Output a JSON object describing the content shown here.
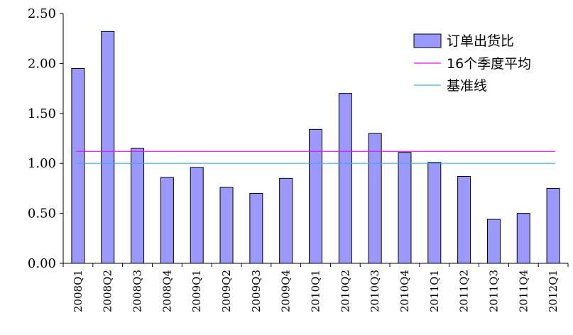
{
  "chart_data": {
    "type": "bar",
    "categories": [
      "2008Q1",
      "2008Q2",
      "2008Q3",
      "2008Q4",
      "2009Q1",
      "2009Q2",
      "2009Q3",
      "2009Q4",
      "2010Q1",
      "2010Q2",
      "2010Q3",
      "2010Q4",
      "2011Q1",
      "2011Q2",
      "2011Q3",
      "2011Q4",
      "2012Q1"
    ],
    "series": [
      {
        "name": "订单出货比",
        "type": "bar",
        "color": "#9999ff",
        "values": [
          1.95,
          2.32,
          1.15,
          0.86,
          0.96,
          0.76,
          0.7,
          0.85,
          1.34,
          1.7,
          1.3,
          1.11,
          1.01,
          0.87,
          0.44,
          0.5,
          0.75
        ]
      },
      {
        "name": "16个季度平均",
        "type": "line",
        "color": "#ff00ff",
        "value": 1.12
      },
      {
        "name": "基准线",
        "type": "line",
        "color": "#33aaff",
        "value": 1.0
      }
    ],
    "ylim": [
      0,
      2.5
    ],
    "yticks": [
      "0.00",
      "0.50",
      "1.00",
      "1.50",
      "2.00",
      "2.50"
    ],
    "ytick_values": [
      0,
      0.5,
      1.0,
      1.5,
      2.0,
      2.5
    ],
    "grid": false,
    "legend_position": "top-right",
    "title": "",
    "xlabel": "",
    "ylabel": ""
  }
}
